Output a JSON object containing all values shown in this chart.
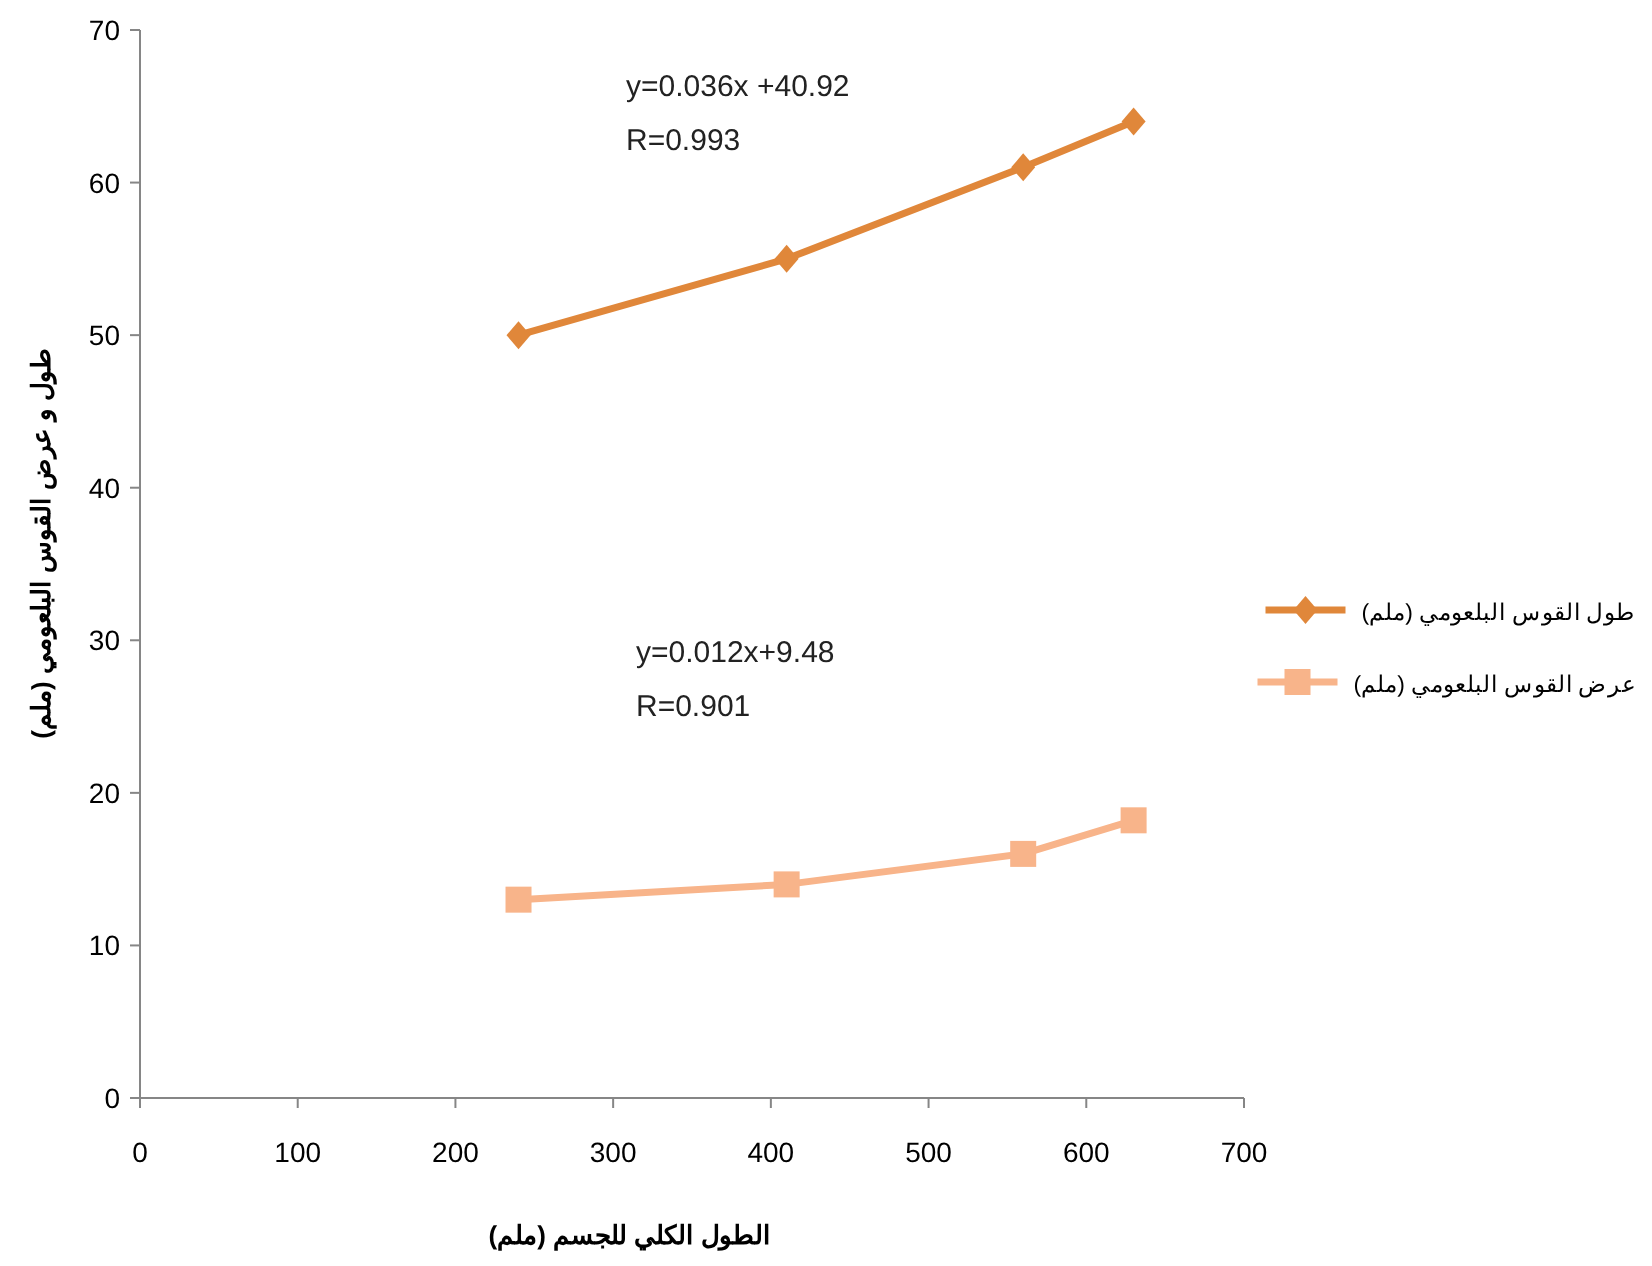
{
  "chart_data": {
    "type": "line",
    "xlabel": "الطول الكلي للجسم (ملم)",
    "ylabel": "طول و عرض القوس البلعومي (ملم)",
    "x": [
      240,
      410,
      560,
      630
    ],
    "series": [
      {
        "name": "طول القوس البلعومي (ملم)",
        "color": "#e0873a",
        "marker": "diamond",
        "values": [
          50,
          55,
          61,
          64
        ]
      },
      {
        "name": "عرض القوس البلعومي (ملم)",
        "color": "#f8b48a",
        "marker": "square",
        "values": [
          13,
          14,
          16,
          18.2
        ]
      }
    ],
    "xlim": [
      0,
      700
    ],
    "xticks": [
      0,
      100,
      200,
      300,
      400,
      500,
      600,
      700
    ],
    "ylim": [
      0,
      70
    ],
    "yticks": [
      0,
      10,
      20,
      30,
      40,
      50,
      60,
      70
    ],
    "grid": false,
    "legend": "right",
    "line_style": "solid",
    "annotations": [
      "y=0.036x +40.92",
      "R=0.993",
      "y=0.012x+9.48",
      "R=0.901"
    ]
  }
}
